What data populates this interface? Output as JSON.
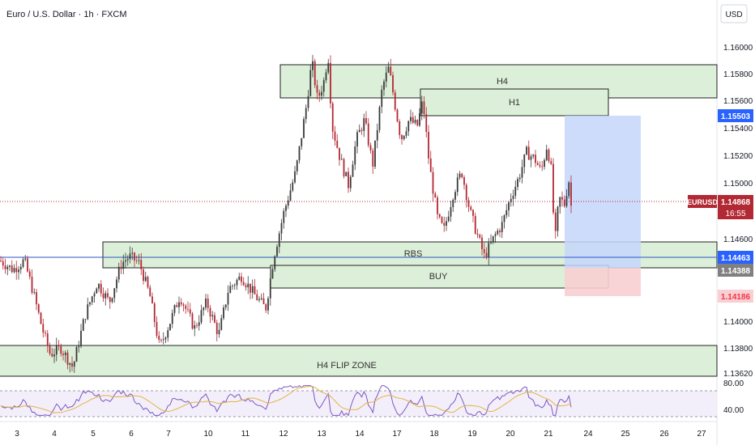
{
  "header": {
    "title": "Euro / U.S. Dollar · 1h · FXCM",
    "currency": "USD"
  },
  "symbol": "EURUSD",
  "countdown": "16:55",
  "colors": {
    "up": "#3a3a3a",
    "down": "#b22833",
    "zone_fill": "#dcefd9",
    "zone_stroke": "#222222",
    "hline": "#2f56c9",
    "target_fill": "#c5d6fb",
    "stop_fill": "#f8cfd2",
    "price_tag": "#b22833",
    "target_tag": "#2962ff",
    "stop_tag": "#f23645",
    "entry_tag": "#808080",
    "rsi_line": "#7e57c2",
    "rsi_ma": "#e3b341"
  },
  "zones": [
    {
      "label": "H4",
      "type": "supply"
    },
    {
      "label": "H1",
      "type": "supply"
    },
    {
      "label": "RBS",
      "type": "demand"
    },
    {
      "label": "BUY",
      "type": "entry"
    },
    {
      "label": "H4 FLIP ZONE",
      "type": "demand"
    }
  ],
  "price_levels": {
    "target": "1.15503",
    "current": "1.14868",
    "blue_line": "1.14463",
    "entry": "1.14388",
    "stop": "1.14186"
  },
  "chart_data": {
    "type": "candlestick",
    "title": "Euro / U.S. Dollar · 1h · FXCM",
    "y_ticks": [
      "1.16000",
      "1.15800",
      "1.15600",
      "1.15400",
      "1.15200",
      "1.15000",
      "1.14600",
      "1.14000",
      "1.13800",
      "1.13620"
    ],
    "ylim": [
      1.1362,
      1.1632
    ],
    "x_ticks": [
      "3",
      "4",
      "5",
      "6",
      "7",
      "10",
      "11",
      "12",
      "13",
      "14",
      "17",
      "18",
      "19",
      "20",
      "21",
      "24",
      "25",
      "26",
      "27"
    ],
    "anchors": [
      [
        0,
        1.1452
      ],
      [
        16,
        1.1445
      ],
      [
        30,
        1.1452
      ],
      [
        40,
        1.143
      ],
      [
        52,
        1.14
      ],
      [
        62,
        1.138
      ],
      [
        75,
        1.1385
      ],
      [
        90,
        1.137
      ],
      [
        105,
        1.141
      ],
      [
        120,
        1.1435
      ],
      [
        135,
        1.142
      ],
      [
        150,
        1.145
      ],
      [
        160,
        1.1455
      ],
      [
        172,
        1.145
      ],
      [
        185,
        1.1425
      ],
      [
        197,
        1.1385
      ],
      [
        210,
        1.1405
      ],
      [
        222,
        1.1425
      ],
      [
        240,
        1.14
      ],
      [
        255,
        1.142
      ],
      [
        270,
        1.1395
      ],
      [
        282,
        1.143
      ],
      [
        298,
        1.144
      ],
      [
        315,
        1.1425
      ],
      [
        328,
        1.1415
      ],
      [
        338,
        1.1455
      ],
      [
        350,
        1.1488
      ],
      [
        365,
        1.152
      ],
      [
        378,
        1.157
      ],
      [
        385,
        1.1605
      ],
      [
        392,
        1.1575
      ],
      [
        400,
        1.159
      ],
      [
        405,
        1.161
      ],
      [
        410,
        1.1555
      ],
      [
        420,
        1.153
      ],
      [
        430,
        1.151
      ],
      [
        440,
        1.1545
      ],
      [
        450,
        1.156
      ],
      [
        460,
        1.1525
      ],
      [
        472,
        1.1585
      ],
      [
        480,
        1.16
      ],
      [
        488,
        1.157
      ],
      [
        495,
        1.1545
      ],
      [
        505,
        1.156
      ],
      [
        515,
        1.1555
      ],
      [
        522,
        1.1575
      ],
      [
        530,
        1.1525
      ],
      [
        540,
        1.1485
      ],
      [
        548,
        1.1475
      ],
      [
        560,
        1.1505
      ],
      [
        570,
        1.152
      ],
      [
        580,
        1.149
      ],
      [
        590,
        1.147
      ],
      [
        598,
        1.1455
      ],
      [
        610,
        1.147
      ],
      [
        620,
        1.148
      ],
      [
        630,
        1.15
      ],
      [
        640,
        1.1515
      ],
      [
        650,
        1.1535
      ],
      [
        660,
        1.153
      ],
      [
        668,
        1.152
      ],
      [
        675,
        1.154
      ],
      [
        680,
        1.1525
      ],
      [
        685,
        1.1465
      ],
      [
        690,
        1.15
      ],
      [
        697,
        1.1495
      ],
      [
        702,
        1.1515
      ],
      [
        706,
        1.1487
      ]
    ],
    "rsi": {
      "ylim": [
        30,
        80
      ],
      "y_ticks": [
        "80.00",
        "40.00"
      ],
      "levels": [
        70,
        30
      ]
    }
  }
}
